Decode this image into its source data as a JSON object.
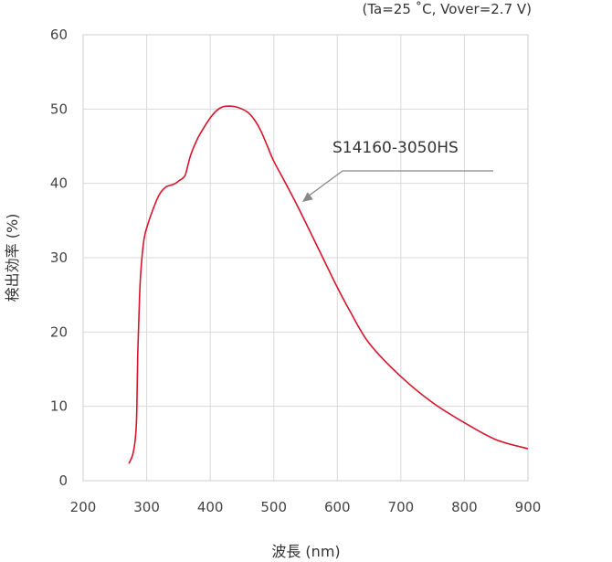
{
  "chart_data": {
    "type": "line",
    "conditions": "(Ta=25 ˚C, Vover=2.7 V)",
    "xlabel": "波長 (nm)",
    "ylabel": "検出効率 (%)",
    "xlim": [
      200,
      900
    ],
    "ylim": [
      0,
      60
    ],
    "x_ticks": [
      200,
      300,
      400,
      500,
      600,
      700,
      800,
      900
    ],
    "y_ticks": [
      0,
      10,
      20,
      30,
      40,
      50,
      60
    ],
    "grid": true,
    "series": [
      {
        "name": "S14160-3050HS",
        "color": "#d7142c",
        "x": [
          272,
          278,
          282,
          284,
          285,
          286,
          288,
          290,
          295,
          300,
          310,
          320,
          330,
          340,
          345,
          350,
          360,
          365,
          370,
          380,
          390,
          400,
          410,
          420,
          430,
          440,
          450,
          460,
          470,
          480,
          490,
          500,
          520,
          540,
          560,
          580,
          600,
          620,
          650,
          700,
          750,
          800,
          850,
          900
        ],
        "y": [
          2.3,
          3.5,
          5.5,
          8,
          12,
          17,
          22.5,
          27,
          32,
          34,
          36.5,
          38.5,
          39.5,
          39.8,
          40,
          40.3,
          41,
          42.5,
          44,
          46,
          47.5,
          48.8,
          49.8,
          50.3,
          50.4,
          50.3,
          50,
          49.5,
          48.5,
          47,
          45,
          43,
          39.8,
          36.5,
          33,
          29.5,
          26,
          22.8,
          18.5,
          14,
          10.5,
          7.8,
          5.5,
          4.3
        ]
      }
    ],
    "annotations": [
      {
        "text": "S14160-3050HS",
        "points_to": {
          "x": 545,
          "y": 37.5
        }
      }
    ]
  }
}
